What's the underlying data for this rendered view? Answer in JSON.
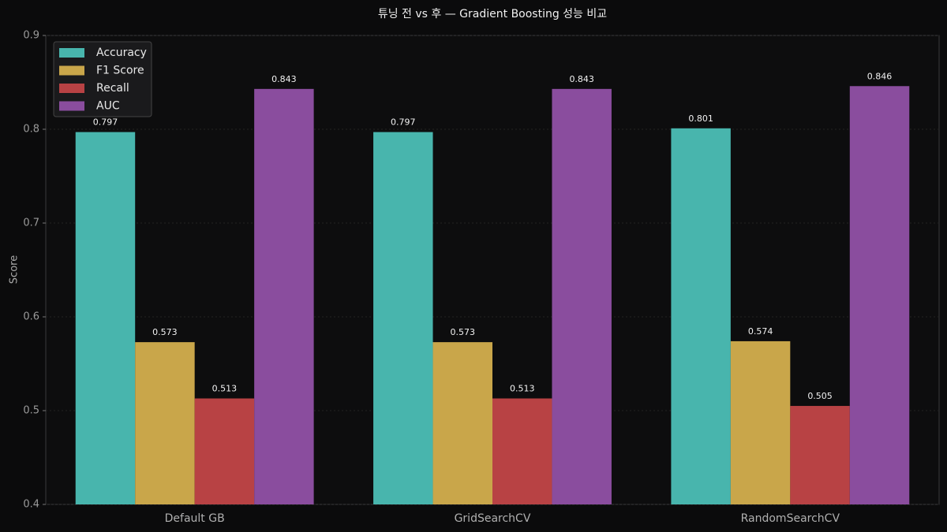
{
  "chart_data": {
    "type": "bar",
    "title": "튜닝 전 vs 후 — Gradient Boosting 성능 비교",
    "y_label": "Score",
    "categories": [
      "Default GB",
      "GridSearchCV",
      "RandomSearchCV"
    ],
    "series": [
      {
        "name": "Accuracy",
        "color": "#48b5ad",
        "values": [
          0.797,
          0.797,
          0.801
        ]
      },
      {
        "name": "F1 Score",
        "color": "#c9a64a",
        "values": [
          0.573,
          0.573,
          0.574
        ]
      },
      {
        "name": "Recall",
        "color": "#b84244",
        "values": [
          0.513,
          0.513,
          0.505
        ]
      },
      {
        "name": "AUC",
        "color": "#8a4d9e",
        "values": [
          0.843,
          0.843,
          0.846
        ]
      }
    ],
    "ylim": [
      0.4,
      0.9
    ],
    "yticks": [
      0.4,
      0.5,
      0.6,
      0.7,
      0.8,
      0.9
    ],
    "grid": true,
    "legend": "upper-left"
  }
}
